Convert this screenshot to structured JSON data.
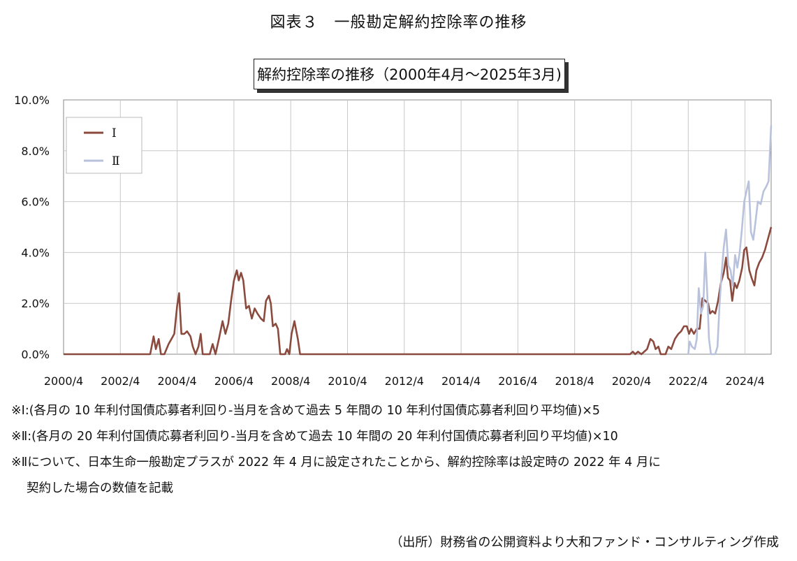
{
  "figure_title": "図表３　一般勘定解約控除率の推移",
  "notes": [
    "※Ⅰ:(各月の 10 年利付国債応募者利回り-当月を含めて過去 5 年間の 10 年利付国債応募者利回り平均値)×5",
    "※Ⅱ:(各月の 20 年利付国債応募者利回り-当月を含めて過去 10 年間の 20 年利付国債応募者利回り平均値)×10",
    "※Ⅱについて、日本生命一般勘定プラスが 2022 年 4 月に設定されたことから、解約控除率は設定時の 2022 年 4 月に",
    "契約した場合の数値を記載"
  ],
  "source": "（出所）財務省の公開資料より大和ファンド・コンサルティング作成",
  "colors": {
    "series_I": "#8b4a3e",
    "series_II": "#b9c2dc",
    "grid": "#c8c8c8",
    "axis": "#888888"
  },
  "chart_data": {
    "type": "line",
    "title": "解約控除率の推移（2000年4月～2025年3月)",
    "xlabel": "",
    "ylabel": "",
    "x_range": [
      2000.25,
      2025.17
    ],
    "ylim": [
      0,
      10
    ],
    "y_ticks": [
      "0.0%",
      "2.0%",
      "4.0%",
      "6.0%",
      "8.0%",
      "10.0%"
    ],
    "x_ticks": [
      "2000/4",
      "2002/4",
      "2004/4",
      "2006/4",
      "2008/4",
      "2010/4",
      "2012/4",
      "2014/4",
      "2016/4",
      "2018/4",
      "2020/4",
      "2022/4",
      "2024/4"
    ],
    "grid": true,
    "legend_position": "top-left",
    "series": [
      {
        "name": "Ⅰ",
        "points": [
          [
            2000.25,
            0
          ],
          [
            2003.3,
            0
          ],
          [
            2003.42,
            0.7
          ],
          [
            2003.5,
            0.2
          ],
          [
            2003.6,
            0.6
          ],
          [
            2003.68,
            0
          ],
          [
            2003.8,
            0
          ],
          [
            2003.95,
            0.4
          ],
          [
            2004.05,
            0.6
          ],
          [
            2004.15,
            0.8
          ],
          [
            2004.25,
            1.9
          ],
          [
            2004.32,
            2.4
          ],
          [
            2004.4,
            0.8
          ],
          [
            2004.5,
            0.8
          ],
          [
            2004.6,
            0.9
          ],
          [
            2004.72,
            0.7
          ],
          [
            2004.8,
            0.3
          ],
          [
            2004.9,
            0
          ],
          [
            2005.0,
            0.3
          ],
          [
            2005.08,
            0.8
          ],
          [
            2005.15,
            0
          ],
          [
            2005.4,
            0
          ],
          [
            2005.5,
            0.4
          ],
          [
            2005.6,
            0
          ],
          [
            2005.72,
            0.6
          ],
          [
            2005.85,
            1.3
          ],
          [
            2005.95,
            0.8
          ],
          [
            2006.05,
            1.2
          ],
          [
            2006.15,
            2.1
          ],
          [
            2006.25,
            2.9
          ],
          [
            2006.35,
            3.3
          ],
          [
            2006.42,
            2.9
          ],
          [
            2006.5,
            3.2
          ],
          [
            2006.58,
            2.9
          ],
          [
            2006.68,
            1.8
          ],
          [
            2006.78,
            1.9
          ],
          [
            2006.88,
            1.4
          ],
          [
            2006.98,
            1.8
          ],
          [
            2007.08,
            1.6
          ],
          [
            2007.2,
            1.4
          ],
          [
            2007.3,
            1.3
          ],
          [
            2007.38,
            2.1
          ],
          [
            2007.48,
            2.3
          ],
          [
            2007.55,
            2.0
          ],
          [
            2007.62,
            1.1
          ],
          [
            2007.72,
            1.2
          ],
          [
            2007.8,
            1.0
          ],
          [
            2007.88,
            0
          ],
          [
            2008.05,
            0
          ],
          [
            2008.12,
            0.2
          ],
          [
            2008.2,
            0
          ],
          [
            2008.28,
            0.8
          ],
          [
            2008.38,
            1.3
          ],
          [
            2008.5,
            0.6
          ],
          [
            2008.58,
            0
          ],
          [
            2020.2,
            0
          ],
          [
            2020.3,
            0.1
          ],
          [
            2020.38,
            0
          ],
          [
            2020.48,
            0.1
          ],
          [
            2020.6,
            0
          ],
          [
            2020.7,
            0.1
          ],
          [
            2020.8,
            0.2
          ],
          [
            2020.92,
            0.6
          ],
          [
            2021.02,
            0.5
          ],
          [
            2021.1,
            0.2
          ],
          [
            2021.2,
            0.3
          ],
          [
            2021.28,
            0
          ],
          [
            2021.45,
            0
          ],
          [
            2021.55,
            0.3
          ],
          [
            2021.65,
            0.2
          ],
          [
            2021.78,
            0.6
          ],
          [
            2021.9,
            0.8
          ],
          [
            2022.0,
            0.9
          ],
          [
            2022.1,
            1.1
          ],
          [
            2022.2,
            1.1
          ],
          [
            2022.28,
            0.8
          ],
          [
            2022.35,
            1.0
          ],
          [
            2022.45,
            0.8
          ],
          [
            2022.55,
            1.0
          ],
          [
            2022.65,
            1.0
          ],
          [
            2022.75,
            2.2
          ],
          [
            2022.85,
            2.1
          ],
          [
            2022.95,
            2.0
          ],
          [
            2023.02,
            1.6
          ],
          [
            2023.1,
            1.7
          ],
          [
            2023.2,
            1.6
          ],
          [
            2023.3,
            2.1
          ],
          [
            2023.4,
            2.8
          ],
          [
            2023.5,
            3.2
          ],
          [
            2023.58,
            3.8
          ],
          [
            2023.65,
            3.0
          ],
          [
            2023.72,
            2.9
          ],
          [
            2023.8,
            2.1
          ],
          [
            2023.88,
            2.8
          ],
          [
            2023.96,
            2.6
          ],
          [
            2024.05,
            2.9
          ],
          [
            2024.15,
            3.4
          ],
          [
            2024.22,
            4.1
          ],
          [
            2024.3,
            4.2
          ],
          [
            2024.4,
            3.3
          ],
          [
            2024.48,
            3.0
          ],
          [
            2024.58,
            2.7
          ],
          [
            2024.65,
            3.3
          ],
          [
            2024.75,
            3.6
          ],
          [
            2024.85,
            3.8
          ],
          [
            2024.95,
            4.1
          ],
          [
            2025.05,
            4.5
          ],
          [
            2025.17,
            5.0
          ]
        ]
      },
      {
        "name": "Ⅱ",
        "points": [
          [
            2022.25,
            0
          ],
          [
            2022.3,
            0.5
          ],
          [
            2022.38,
            0.3
          ],
          [
            2022.48,
            0.2
          ],
          [
            2022.55,
            0.6
          ],
          [
            2022.62,
            2.6
          ],
          [
            2022.7,
            1.6
          ],
          [
            2022.78,
            1.9
          ],
          [
            2022.85,
            4.0
          ],
          [
            2022.92,
            2.4
          ],
          [
            2022.98,
            0.6
          ],
          [
            2023.05,
            0
          ],
          [
            2023.2,
            0
          ],
          [
            2023.28,
            0.3
          ],
          [
            2023.35,
            1.9
          ],
          [
            2023.42,
            3.1
          ],
          [
            2023.5,
            4.2
          ],
          [
            2023.58,
            4.9
          ],
          [
            2023.66,
            3.5
          ],
          [
            2023.74,
            3.3
          ],
          [
            2023.82,
            2.7
          ],
          [
            2023.9,
            3.9
          ],
          [
            2023.98,
            3.4
          ],
          [
            2024.06,
            4.0
          ],
          [
            2024.14,
            4.9
          ],
          [
            2024.22,
            6.0
          ],
          [
            2024.3,
            6.4
          ],
          [
            2024.38,
            6.8
          ],
          [
            2024.46,
            4.8
          ],
          [
            2024.54,
            4.5
          ],
          [
            2024.62,
            5.2
          ],
          [
            2024.7,
            6.0
          ],
          [
            2024.8,
            5.9
          ],
          [
            2024.9,
            6.4
          ],
          [
            2025.0,
            6.6
          ],
          [
            2025.08,
            6.8
          ],
          [
            2025.17,
            9.0
          ]
        ]
      }
    ]
  }
}
